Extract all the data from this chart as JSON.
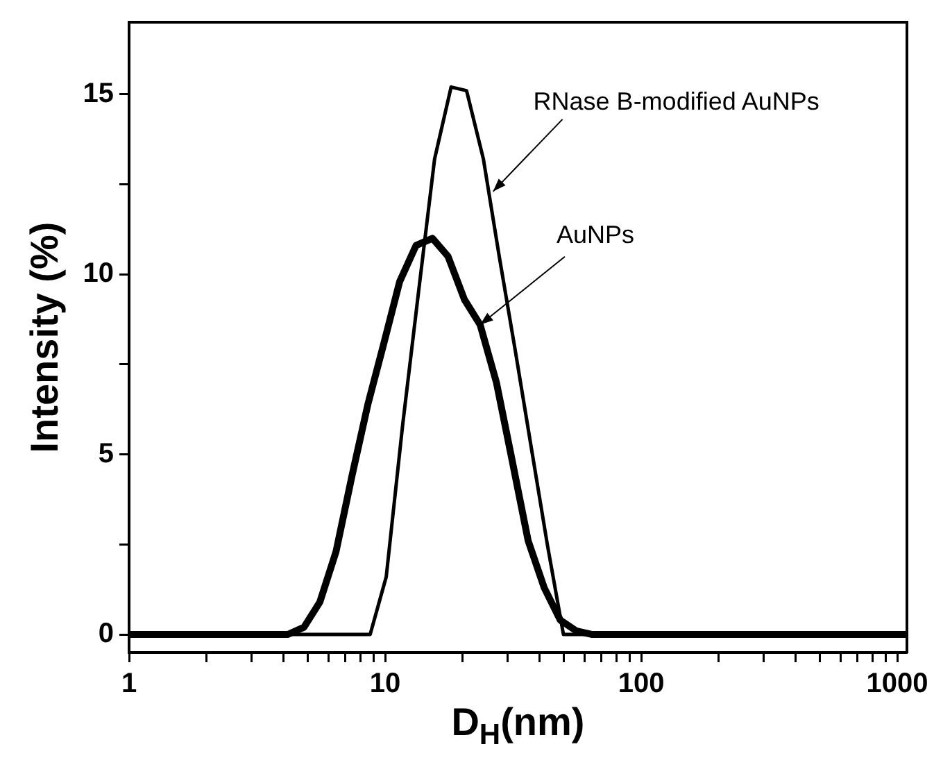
{
  "chart_data": {
    "type": "line",
    "xlabel": "D$_{H}$(nm)",
    "ylabel": "Intensity (%)",
    "log": "x",
    "grid": false,
    "legend": false,
    "marker": "none",
    "line_style": "solid",
    "xlim": [
      1,
      1090
    ],
    "ylim": [
      -0.5,
      17
    ],
    "xticks": [
      1,
      {
        "value": 2,
        "label": null
      },
      {
        "value": 3,
        "label": null
      },
      {
        "value": 4,
        "label": null
      },
      {
        "value": 5,
        "label": null
      },
      {
        "value": 6,
        "label": null
      },
      {
        "value": 7,
        "label": null
      },
      {
        "value": 8,
        "label": null
      },
      {
        "value": 9,
        "label": null
      },
      10,
      {
        "value": 20,
        "label": null
      },
      {
        "value": 30,
        "label": null
      },
      {
        "value": 40,
        "label": null
      },
      {
        "value": 50,
        "label": null
      },
      {
        "value": 60,
        "label": null
      },
      {
        "value": 70,
        "label": null
      },
      {
        "value": 80,
        "label": null
      },
      {
        "value": 90,
        "label": null
      },
      100,
      {
        "value": 200,
        "label": null
      },
      {
        "value": 300,
        "label": null
      },
      {
        "value": 400,
        "label": null
      },
      {
        "value": 500,
        "label": null
      },
      {
        "value": 600,
        "label": null
      },
      {
        "value": 700,
        "label": null
      },
      {
        "value": 800,
        "label": null
      },
      {
        "value": 900,
        "label": null
      },
      1000
    ],
    "yticks": [
      0,
      {
        "value": 2.5,
        "label": null
      },
      5,
      {
        "value": 7.5,
        "label": null
      },
      10,
      {
        "value": 12.5,
        "label": null
      },
      15
    ],
    "series": [
      {
        "color": "#000000",
        "x": [
          1,
          8.74,
          10.1,
          11.7,
          13.5,
          15.6,
          18.1,
          20.8,
          24.2,
          27.9,
          32.2,
          37.2,
          43.0,
          49.7,
          1090
        ],
        "values": [
          0,
          0,
          1.6,
          5.8,
          9.5,
          13.2,
          15.2,
          15.1,
          13.2,
          10.5,
          7.9,
          5.2,
          2.5,
          0,
          0
        ]
      },
      {
        "color": "#000000",
        "x": [
          1,
          4.17,
          4.82,
          5.56,
          6.43,
          7.42,
          8.57,
          9.9,
          11.4,
          13.2,
          15.3,
          17.6,
          20.4,
          23.5,
          27.2,
          31.4,
          36.2,
          41.8,
          48.3,
          55.8,
          64.4,
          1090
        ],
        "values": [
          0,
          0,
          0.2,
          0.9,
          2.3,
          4.4,
          6.4,
          8.1,
          9.8,
          10.8,
          11.0,
          10.5,
          9.3,
          8.6,
          7.0,
          4.8,
          2.6,
          1.3,
          0.4,
          0.1,
          0,
          0
        ]
      }
    ],
    "annotations": [
      {
        "text": "RNase B-modified AuNPs",
        "x": 26.4,
        "y": 12.3
      },
      {
        "text": "AuNPs",
        "x": 23.5,
        "y": 8.6
      }
    ]
  }
}
